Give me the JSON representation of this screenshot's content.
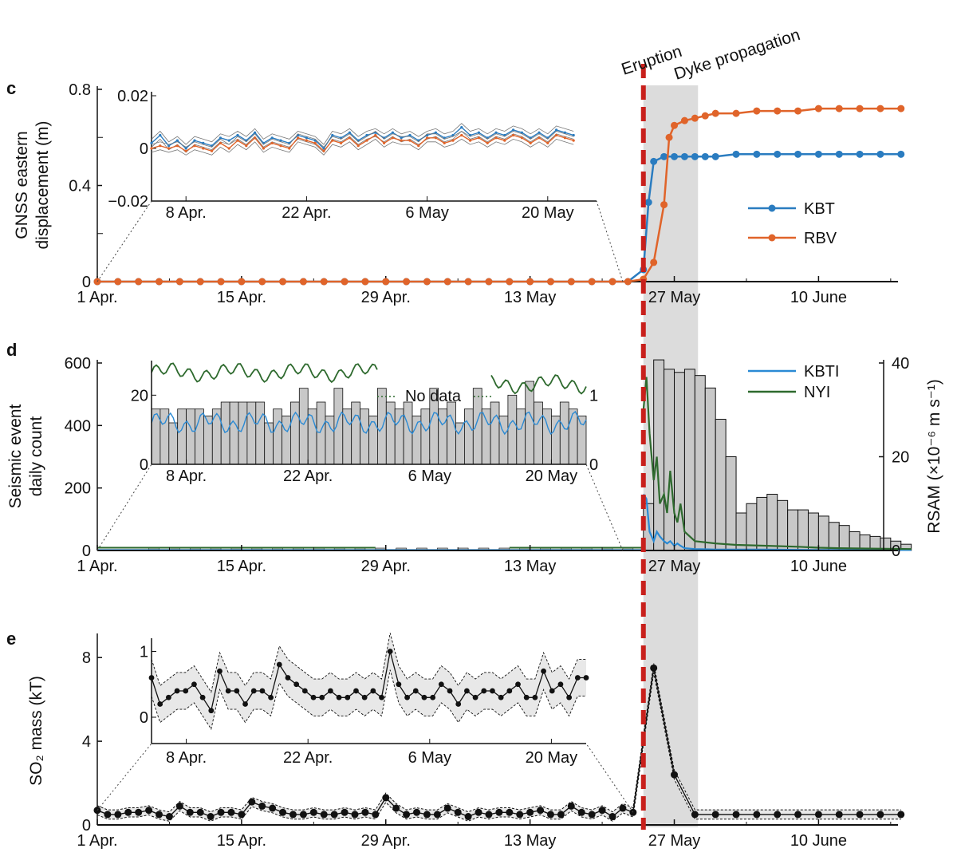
{
  "figure": {
    "event_labels": {
      "eruption": "Eruption",
      "dyke": "Dyke propagation"
    },
    "colors": {
      "eruption_line": "#c8201c",
      "shade": "#dcdcdc",
      "kbt": "#2a7cc0",
      "rbv": "#e0642a",
      "kbti": "#2a8ad4",
      "nyi": "#2e6a2e",
      "bars": "#c8c8c8",
      "so2": "#111111"
    },
    "eruption_day": 53,
    "dyke_end_day": 58.3,
    "date_ticks": [
      {
        "day": 0,
        "label": "1 Apr."
      },
      {
        "day": 14,
        "label": "15 Apr."
      },
      {
        "day": 28,
        "label": "29 Apr."
      },
      {
        "day": 42,
        "label": "13 May"
      },
      {
        "day": 56,
        "label": "27 May"
      },
      {
        "day": 70,
        "label": "10 June"
      }
    ],
    "inset_date_ticks": [
      {
        "day": 7,
        "label": "8 Apr."
      },
      {
        "day": 21,
        "label": "22 Apr."
      },
      {
        "day": 35,
        "label": "6 May"
      },
      {
        "day": 49,
        "label": "20 May"
      }
    ]
  },
  "chart_data": [
    {
      "panel": "c",
      "type": "line",
      "ylabel": [
        "GNSS eastern",
        "displacement (m)"
      ],
      "ylim": [
        0,
        0.8
      ],
      "yticks": [
        {
          "v": 0,
          "label": "0"
        },
        {
          "v": 0.4,
          "label": "0.4"
        },
        {
          "v": 0.8,
          "label": "0.8"
        }
      ],
      "xlim": [
        0,
        79
      ],
      "legend_position": "right",
      "series": [
        {
          "name": "KBT",
          "x": [
            0,
            2,
            4,
            6,
            8,
            10,
            12,
            14,
            16,
            18,
            20,
            22,
            24,
            26,
            28,
            30,
            32,
            34,
            36,
            38,
            40,
            42,
            44,
            46,
            48,
            50,
            51.5,
            53,
            53.5,
            54,
            55,
            56,
            57,
            58,
            59,
            60,
            62,
            64,
            66,
            68,
            70,
            72,
            74,
            76,
            78
          ],
          "values": [
            0,
            0,
            0,
            0,
            0,
            0,
            0,
            0,
            0,
            0,
            0,
            0,
            0,
            0,
            0,
            0,
            0,
            0,
            0,
            0,
            0,
            0,
            0,
            0,
            0,
            0,
            0,
            0.05,
            0.33,
            0.5,
            0.52,
            0.52,
            0.52,
            0.52,
            0.52,
            0.52,
            0.53,
            0.53,
            0.53,
            0.53,
            0.53,
            0.53,
            0.53,
            0.53,
            0.53
          ]
        },
        {
          "name": "RBV",
          "x": [
            0,
            2,
            4,
            6,
            8,
            10,
            12,
            14,
            16,
            18,
            20,
            22,
            24,
            26,
            28,
            30,
            32,
            34,
            36,
            38,
            40,
            42,
            44,
            46,
            48,
            50,
            51.5,
            53,
            54,
            55,
            55.5,
            56,
            57,
            58,
            59,
            60,
            62,
            64,
            66,
            68,
            70,
            72,
            74,
            76,
            78
          ],
          "values": [
            0,
            0,
            0,
            0,
            0,
            0,
            0,
            0,
            0,
            0,
            0,
            0,
            0,
            0,
            0,
            0,
            0,
            0,
            0,
            0,
            0,
            0,
            0,
            0,
            0,
            0,
            0,
            0.01,
            0.08,
            0.32,
            0.6,
            0.65,
            0.67,
            0.68,
            0.69,
            0.7,
            0.7,
            0.71,
            0.71,
            0.71,
            0.72,
            0.72,
            0.72,
            0.72,
            0.72
          ]
        }
      ],
      "inset": {
        "ylim": [
          -0.02,
          0.02
        ],
        "yticks": [
          {
            "v": -0.02,
            "label": "−0.02"
          },
          {
            "v": 0,
            "label": "0"
          },
          {
            "v": 0.02,
            "label": "0.02"
          }
        ],
        "xlim": [
          3,
          53
        ],
        "series": [
          {
            "name": "KBT",
            "x": [
              3,
              4,
              5,
              6,
              7,
              8,
              9,
              10,
              11,
              12,
              13,
              14,
              15,
              16,
              17,
              18,
              19,
              20,
              21,
              22,
              23,
              24,
              25,
              26,
              27,
              28,
              29,
              30,
              31,
              32,
              33,
              34,
              35,
              36,
              37,
              38,
              39,
              40,
              41,
              42,
              43,
              44,
              45,
              46,
              47,
              48,
              49,
              50,
              51,
              52
            ],
            "values": [
              0.002,
              0.005,
              0.001,
              0.003,
              0.0,
              0.003,
              0.002,
              0.001,
              0.004,
              0.003,
              0.005,
              0.003,
              0.006,
              0.002,
              0.004,
              0.003,
              0.002,
              0.005,
              0.004,
              0.003,
              0.0,
              0.005,
              0.004,
              0.006,
              0.003,
              0.005,
              0.006,
              0.004,
              0.006,
              0.004,
              0.005,
              0.003,
              0.005,
              0.006,
              0.004,
              0.005,
              0.008,
              0.005,
              0.006,
              0.004,
              0.006,
              0.005,
              0.007,
              0.006,
              0.004,
              0.006,
              0.004,
              0.007,
              0.006,
              0.005
            ]
          },
          {
            "name": "RBV",
            "x": [
              3,
              4,
              5,
              6,
              7,
              8,
              9,
              10,
              11,
              12,
              13,
              14,
              15,
              16,
              17,
              18,
              19,
              20,
              21,
              22,
              23,
              24,
              25,
              26,
              27,
              28,
              29,
              30,
              31,
              32,
              33,
              34,
              35,
              36,
              37,
              38,
              39,
              40,
              41,
              42,
              43,
              44,
              45,
              46,
              47,
              48,
              49,
              50,
              51,
              52
            ],
            "values": [
              0,
              0.001,
              0,
              0.001,
              -0.001,
              0.001,
              0,
              -0.001,
              0.002,
              0.0,
              0.003,
              0.001,
              0.004,
              0.0,
              0.002,
              0.001,
              0.0,
              0.004,
              0.003,
              0.002,
              -0.001,
              0.003,
              0.002,
              0.004,
              0.001,
              0.003,
              0.005,
              0.002,
              0.004,
              0.003,
              0.003,
              0.001,
              0.004,
              0.004,
              0.002,
              0.003,
              0.005,
              0.003,
              0.004,
              0.002,
              0.004,
              0.003,
              0.005,
              0.004,
              0.002,
              0.004,
              0.002,
              0.005,
              0.004,
              0.003
            ]
          }
        ]
      }
    },
    {
      "panel": "d",
      "type": "bar",
      "ylabel": [
        "Seismic event",
        "daily count"
      ],
      "ylabel_right": "RSAM (×10⁻⁶ m s⁻¹)",
      "ylim": [
        0,
        600
      ],
      "ylim_right": [
        0,
        40
      ],
      "yticks": [
        {
          "v": 0,
          "label": "0"
        },
        {
          "v": 200,
          "label": "200"
        },
        {
          "v": 400,
          "label": "400"
        },
        {
          "v": 600,
          "label": "600"
        }
      ],
      "yticks_right": [
        {
          "v": 0,
          "label": "0"
        },
        {
          "v": 20,
          "label": "20"
        },
        {
          "v": 40,
          "label": "40"
        }
      ],
      "legend_position": "top-right",
      "bars": {
        "x": [
          53,
          54,
          55,
          56,
          57,
          58,
          59,
          60,
          61,
          62,
          63,
          64,
          65,
          66,
          67,
          68,
          69,
          70,
          71,
          72,
          73,
          74,
          75,
          76,
          77,
          78
        ],
        "values": [
          150,
          610,
          580,
          570,
          580,
          560,
          520,
          420,
          300,
          120,
          150,
          170,
          180,
          160,
          130,
          130,
          120,
          110,
          90,
          80,
          60,
          50,
          45,
          40,
          30,
          20
        ]
      },
      "series": [
        {
          "name": "KBTI",
          "x": [
            53,
            53.3,
            53.6,
            54,
            54.3,
            54.6,
            55,
            55.3,
            55.6,
            56,
            56.3,
            56.6,
            57,
            58,
            60,
            65,
            70,
            75,
            79
          ],
          "values": [
            12,
            11,
            4,
            2,
            4,
            3,
            2,
            1.5,
            2,
            1,
            1.5,
            1,
            0.5,
            0.3,
            0.2,
            0.2,
            0.1,
            0.1,
            0.1
          ]
        },
        {
          "name": "NYI",
          "x": [
            53,
            53.3,
            53.6,
            54,
            54.3,
            54.6,
            55,
            55.3,
            55.6,
            56,
            56.3,
            56.6,
            57,
            58,
            60,
            62,
            65,
            68,
            70,
            72,
            75,
            79
          ],
          "values": [
            30,
            37,
            25,
            15,
            20,
            10,
            12,
            8,
            17,
            8,
            6,
            10,
            4,
            2,
            1.5,
            1.2,
            1,
            0.8,
            0.6,
            0.5,
            0.4,
            0.3
          ]
        }
      ],
      "inset": {
        "left_ticks": [
          {
            "v": 0,
            "label": "0"
          },
          {
            "v": 20,
            "label": "20"
          }
        ],
        "right_ticks": [
          {
            "v": 0,
            "label": "0"
          },
          {
            "v": 1,
            "label": "1"
          }
        ],
        "no_data_label": "No data",
        "bars": [
          16,
          16,
          12,
          16,
          16,
          16,
          14,
          16,
          18,
          18,
          18,
          18,
          18,
          12,
          16,
          14,
          18,
          22,
          16,
          18,
          14,
          22,
          16,
          18,
          16,
          14,
          22,
          18,
          16,
          18,
          14,
          16,
          22,
          16,
          18,
          12,
          16,
          22,
          16,
          18,
          14,
          20,
          16,
          24,
          18,
          16,
          14,
          18,
          16,
          14
        ]
      }
    },
    {
      "panel": "e",
      "type": "line",
      "ylabel": "SO₂ mass (kT)",
      "ylim": [
        0,
        9
      ],
      "yticks": [
        {
          "v": 0,
          "label": "0"
        },
        {
          "v": 4,
          "label": "4"
        },
        {
          "v": 8,
          "label": "8"
        }
      ],
      "series": [
        {
          "name": "",
          "x": [
            0,
            1,
            2,
            3,
            4,
            5,
            6,
            7,
            8,
            9,
            10,
            11,
            12,
            13,
            14,
            15,
            16,
            17,
            18,
            19,
            20,
            21,
            22,
            23,
            24,
            25,
            26,
            27,
            28,
            29,
            30,
            31,
            32,
            33,
            34,
            35,
            36,
            37,
            38,
            39,
            40,
            41,
            42,
            43,
            44,
            45,
            46,
            47,
            48,
            49,
            50,
            51,
            52,
            54,
            56,
            58,
            60,
            62,
            64,
            66,
            68,
            70,
            72,
            74,
            76,
            78
          ],
          "values": [
            0.7,
            0.5,
            0.5,
            0.6,
            0.6,
            0.7,
            0.5,
            0.4,
            0.9,
            0.6,
            0.6,
            0.4,
            0.6,
            0.6,
            0.5,
            1.1,
            0.9,
            0.8,
            0.6,
            0.5,
            0.5,
            0.6,
            0.5,
            0.5,
            0.6,
            0.5,
            0.6,
            0.5,
            1.3,
            0.8,
            0.5,
            0.6,
            0.5,
            0.5,
            0.8,
            0.6,
            0.4,
            0.6,
            0.5,
            0.6,
            0.6,
            0.5,
            0.6,
            0.7,
            0.5,
            0.5,
            0.9,
            0.6,
            0.5,
            0.7,
            0.4,
            0.8,
            0.6,
            7.5,
            2.4,
            0.5,
            0.5,
            0.5,
            0.5,
            0.5,
            0.5,
            0.5,
            0.5,
            0.5,
            0.5,
            0.5
          ]
        }
      ],
      "inset": {
        "ylim": [
          -0.4,
          1.2
        ],
        "yticks": [
          {
            "v": 0,
            "label": "0"
          },
          {
            "v": 1,
            "label": "1"
          }
        ],
        "values": [
          0.6,
          0.2,
          0.3,
          0.4,
          0.4,
          0.5,
          0.3,
          0.1,
          0.7,
          0.4,
          0.4,
          0.2,
          0.4,
          0.4,
          0.3,
          0.8,
          0.6,
          0.5,
          0.4,
          0.3,
          0.3,
          0.4,
          0.3,
          0.3,
          0.4,
          0.3,
          0.4,
          0.3,
          1.0,
          0.5,
          0.3,
          0.4,
          0.3,
          0.3,
          0.5,
          0.4,
          0.2,
          0.4,
          0.3,
          0.4,
          0.4,
          0.3,
          0.4,
          0.5,
          0.3,
          0.3,
          0.7,
          0.4,
          0.5,
          0.3,
          0.6,
          0.6
        ]
      }
    }
  ]
}
